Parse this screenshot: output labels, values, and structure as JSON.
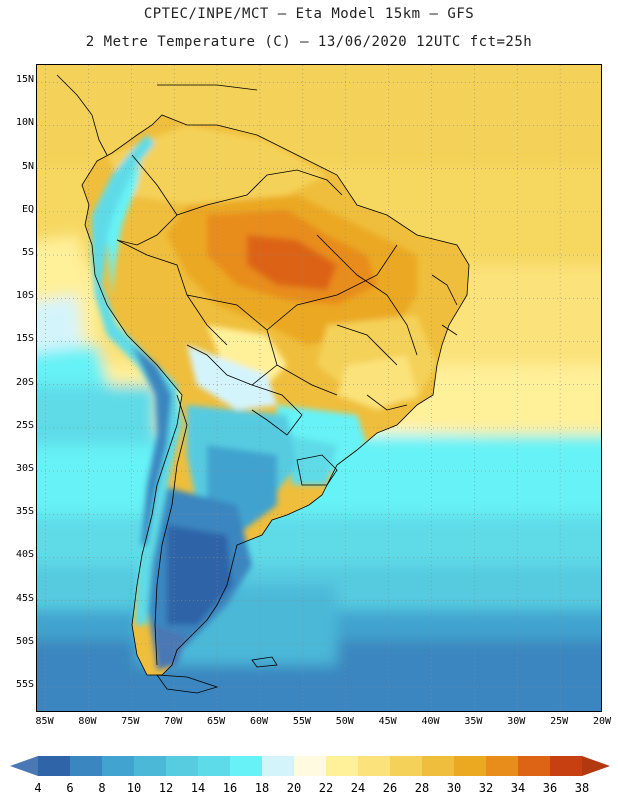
{
  "title": {
    "line1": "CPTEC/INPE/MCT –  Eta Model 15km – GFS",
    "line2": "2 Metre Temperature (C) – 13/06/2020 12UTC fct=25h"
  },
  "map": {
    "variable": "2 Metre Temperature",
    "units": "C",
    "lat_ticks": [
      "15N",
      "10N",
      "5N",
      "EQ",
      "5S",
      "10S",
      "15S",
      "20S",
      "25S",
      "30S",
      "35S",
      "40S",
      "45S",
      "50S",
      "55S"
    ],
    "lat_values": [
      15,
      10,
      5,
      0,
      -5,
      -10,
      -15,
      -20,
      -25,
      -30,
      -35,
      -40,
      -45,
      -50,
      -55
    ],
    "lat_range": [
      -58,
      17
    ],
    "lon_ticks": [
      "85W",
      "80W",
      "75W",
      "70W",
      "65W",
      "60W",
      "55W",
      "50W",
      "45W",
      "40W",
      "35W",
      "30W",
      "25W",
      "20W"
    ],
    "lon_values": [
      -85,
      -80,
      -75,
      -70,
      -65,
      -60,
      -55,
      -50,
      -45,
      -40,
      -35,
      -30,
      -25,
      -20
    ],
    "lon_range": [
      -86,
      -20
    ]
  },
  "colorbar": {
    "labels": [
      "4",
      "6",
      "8",
      "10",
      "12",
      "14",
      "16",
      "18",
      "20",
      "22",
      "24",
      "26",
      "28",
      "30",
      "32",
      "34",
      "36",
      "38"
    ],
    "colors": [
      "#4a78b4",
      "#2f64a8",
      "#3a86c0",
      "#41a3cf",
      "#4cb8d8",
      "#57cbe0",
      "#5edbe8",
      "#66f2f6",
      "#d4f4fc",
      "#fffae0",
      "#fff09a",
      "#fbe27a",
      "#f4d158",
      "#efbe3c",
      "#eba821",
      "#e88c1c",
      "#dc6414",
      "#c64012",
      "#b23810"
    ]
  },
  "colors": {
    "frame": "#000000",
    "border": "#000000",
    "grid": "#8a8a8a"
  }
}
